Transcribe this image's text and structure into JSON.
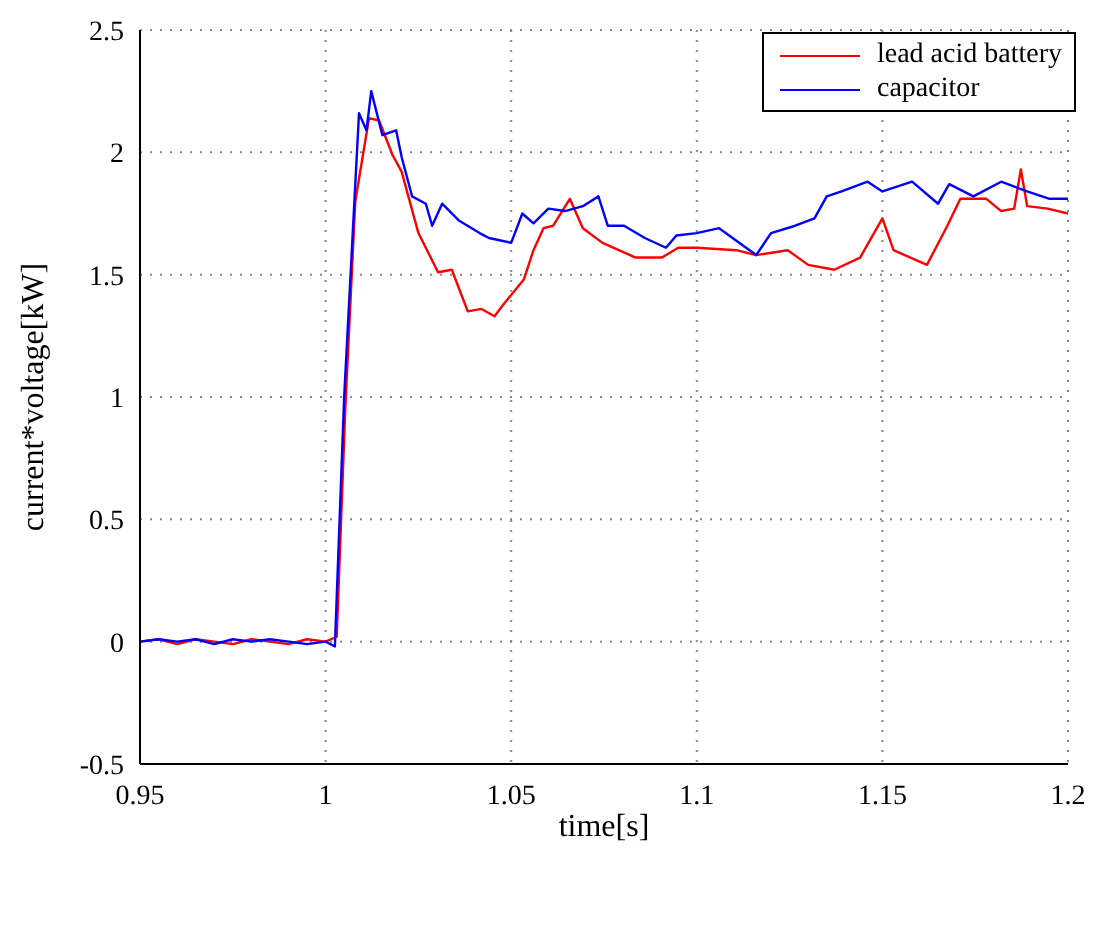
{
  "chart_data": {
    "type": "line",
    "xlabel": "time[s]",
    "ylabel": "current*voltage[kW]",
    "xlim": [
      0.95,
      1.2
    ],
    "xticks": [
      0.95,
      1,
      1.05,
      1.1,
      1.15,
      1.2
    ],
    "ylim": [
      -0.5,
      2.5
    ],
    "yticks": [
      -0.5,
      0,
      0.5,
      1,
      1.5,
      2,
      2.5
    ],
    "grid": true,
    "legend": "top right",
    "line_style": "solid",
    "marker": "none",
    "series": [
      {
        "name": "lead acid battery",
        "color": "#ff0000",
        "x": [
          0.95,
          0.955,
          0.96,
          0.965,
          0.97,
          0.975,
          0.98,
          0.985,
          0.99,
          0.995,
          1.0,
          1.003,
          1.0053,
          1.008,
          1.0117,
          1.0144,
          1.018,
          1.0205,
          1.025,
          1.0303,
          1.034,
          1.0383,
          1.042,
          1.0455,
          1.048,
          1.0534,
          1.056,
          1.0587,
          1.0613,
          1.0658,
          1.0693,
          1.0746,
          1.0835,
          1.0906,
          1.095,
          1.1,
          1.1106,
          1.116,
          1.1245,
          1.13,
          1.137,
          1.144,
          1.15,
          1.153,
          1.162,
          1.1675,
          1.171,
          1.178,
          1.182,
          1.1855,
          1.1873,
          1.189,
          1.1945,
          1.2
        ],
        "values": [
          0.0,
          0.01,
          -0.01,
          0.01,
          0.0,
          -0.01,
          0.01,
          0.0,
          -0.01,
          0.01,
          0.0,
          0.02,
          0.95,
          1.8,
          2.14,
          2.13,
          1.99,
          1.92,
          1.67,
          1.51,
          1.52,
          1.35,
          1.36,
          1.33,
          1.38,
          1.48,
          1.6,
          1.69,
          1.7,
          1.81,
          1.69,
          1.63,
          1.57,
          1.57,
          1.61,
          1.61,
          1.6,
          1.58,
          1.6,
          1.54,
          1.52,
          1.57,
          1.73,
          1.6,
          1.54,
          1.7,
          1.81,
          1.81,
          1.76,
          1.77,
          1.93,
          1.78,
          1.77,
          1.75
        ]
      },
      {
        "name": "capacitor",
        "color": "#0000ff",
        "x": [
          0.95,
          0.955,
          0.96,
          0.965,
          0.97,
          0.975,
          0.98,
          0.985,
          0.99,
          0.995,
          1.0,
          1.0025,
          1.005,
          1.009,
          1.011,
          1.0123,
          1.0153,
          1.019,
          1.0205,
          1.0233,
          1.027,
          1.0287,
          1.0314,
          1.036,
          1.0415,
          1.044,
          1.05,
          1.053,
          1.056,
          1.06,
          1.0645,
          1.0693,
          1.0735,
          1.076,
          1.0804,
          1.086,
          1.0917,
          1.0945,
          1.1,
          1.106,
          1.116,
          1.12,
          1.1265,
          1.1317,
          1.135,
          1.139,
          1.146,
          1.15,
          1.158,
          1.165,
          1.168,
          1.1745,
          1.182,
          1.189,
          1.195,
          1.2
        ],
        "values": [
          0.0,
          0.01,
          0.0,
          0.01,
          -0.01,
          0.01,
          0.0,
          0.01,
          0.0,
          -0.01,
          0.0,
          -0.02,
          1.0,
          2.16,
          2.09,
          2.25,
          2.07,
          2.09,
          1.98,
          1.82,
          1.79,
          1.7,
          1.79,
          1.72,
          1.67,
          1.65,
          1.63,
          1.75,
          1.71,
          1.77,
          1.76,
          1.78,
          1.82,
          1.7,
          1.7,
          1.65,
          1.61,
          1.66,
          1.67,
          1.69,
          1.58,
          1.67,
          1.7,
          1.73,
          1.82,
          1.84,
          1.88,
          1.84,
          1.88,
          1.79,
          1.87,
          1.82,
          1.88,
          1.84,
          1.81,
          1.81
        ]
      }
    ]
  }
}
